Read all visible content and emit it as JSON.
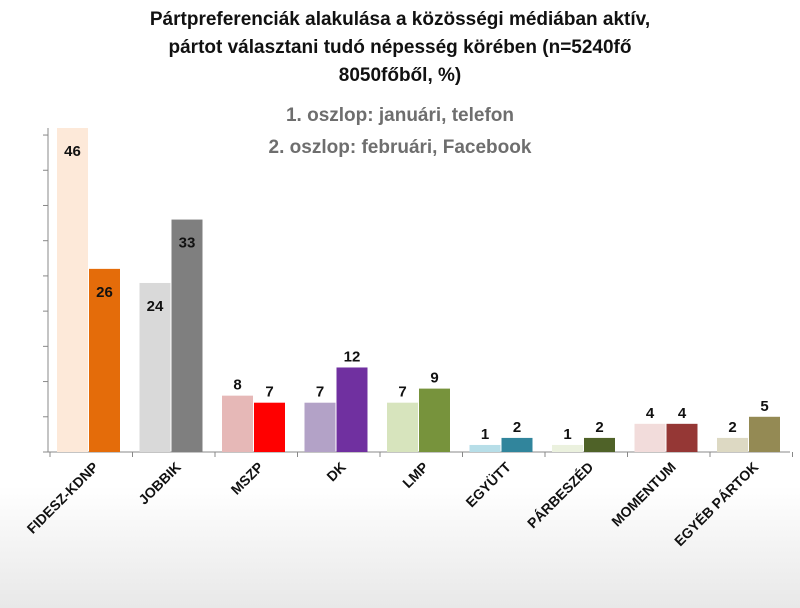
{
  "chart_data": {
    "type": "bar",
    "title_lines": [
      "Pártpreferenciák alakulása a közösségi médiában aktív,",
      "pártot választani tudó népesség körében (n=5240fő",
      "8050főből, %)"
    ],
    "subtitle_lines": [
      "1. oszlop: januári, telefon",
      "2. oszlop: februári, Facebook"
    ],
    "categories": [
      "FIDESZ-KDNP",
      "JOBBIK",
      "MSZP",
      "DK",
      "LMP",
      "EGYÜTT",
      "PÁRBESZÉD",
      "MOMENTUM",
      "EGYÉB PÁRTOK"
    ],
    "series": [
      {
        "values": [
          46,
          24,
          8,
          7,
          7,
          1,
          1,
          4,
          2
        ],
        "colors": [
          "#fde9d9",
          "#d9d9d9",
          "#e6b8b7",
          "#b3a2c7",
          "#d7e4bd",
          "#b7dee8",
          "#ebf1de",
          "#f2dcdb",
          "#ddd9c3"
        ]
      },
      {
        "values": [
          26,
          33,
          7,
          12,
          9,
          2,
          2,
          4,
          5
        ],
        "colors": [
          "#e46c0a",
          "#7f7f7f",
          "#ff0000",
          "#7030a0",
          "#77933c",
          "#31859c",
          "#4f6228",
          "#953735",
          "#948a54"
        ]
      }
    ],
    "ylim": [
      0,
      46
    ],
    "grid": false
  }
}
